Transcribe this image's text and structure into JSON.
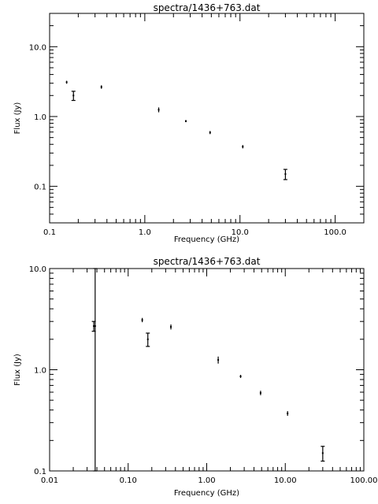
{
  "chart_data": [
    {
      "type": "scatter",
      "title": "spectra/1436+763.dat",
      "xlabel": "Frequency (GHz)",
      "ylabel": "Flux (Jy)",
      "xscale": "log",
      "yscale": "log",
      "xlim": [
        0.1,
        200
      ],
      "ylim": [
        0.03,
        30
      ],
      "grid": false,
      "xticks": [
        {
          "value": 0.1,
          "label": "0.1"
        },
        {
          "value": 1,
          "label": "1.0"
        },
        {
          "value": 10,
          "label": "10.0"
        },
        {
          "value": 100,
          "label": "100.0"
        }
      ],
      "yticks": [
        {
          "value": 0.1,
          "label": "0.1"
        },
        {
          "value": 1,
          "label": "1.0"
        },
        {
          "value": 10,
          "label": "10.0"
        }
      ],
      "points": [
        {
          "x": 0.151,
          "y": 3.1,
          "err": 0.15
        },
        {
          "x": 0.178,
          "y": 2.0,
          "err": 0.3
        },
        {
          "x": 0.35,
          "y": 2.65,
          "err": 0.15
        },
        {
          "x": 1.4,
          "y": 1.25,
          "err": 0.1
        },
        {
          "x": 2.7,
          "y": 0.86,
          "err": 0.03
        },
        {
          "x": 4.85,
          "y": 0.59,
          "err": 0.03
        },
        {
          "x": 10.7,
          "y": 0.37,
          "err": 0.02
        },
        {
          "x": 30,
          "y": 0.15,
          "err": 0.025
        }
      ]
    },
    {
      "type": "scatter",
      "title": "spectra/1436+763.dat",
      "xlabel": "Frequency (GHz)",
      "ylabel": "Flux (Jy)",
      "xscale": "log",
      "yscale": "log",
      "xlim": [
        0.01,
        100
      ],
      "ylim": [
        0.1,
        10
      ],
      "grid": false,
      "xticks": [
        {
          "value": 0.01,
          "label": "0.01"
        },
        {
          "value": 0.1,
          "label": "0.10"
        },
        {
          "value": 1,
          "label": "1.00"
        },
        {
          "value": 10,
          "label": "10.00"
        },
        {
          "value": 100,
          "label": "100.00"
        }
      ],
      "yticks": [
        {
          "value": 0.1,
          "label": "0.1"
        },
        {
          "value": 1,
          "label": "1.0"
        },
        {
          "value": 10,
          "label": "10.0"
        }
      ],
      "points": [
        {
          "x": 0.0365,
          "y": 2.7,
          "err": 0.3
        },
        {
          "x": 0.038,
          "y": 2.7,
          "err": 10
        },
        {
          "x": 0.151,
          "y": 3.1,
          "err": 0.15
        },
        {
          "x": 0.178,
          "y": 2.0,
          "err": 0.3
        },
        {
          "x": 0.35,
          "y": 2.65,
          "err": 0.15
        },
        {
          "x": 1.4,
          "y": 1.25,
          "err": 0.1
        },
        {
          "x": 2.7,
          "y": 0.86,
          "err": 0.03
        },
        {
          "x": 4.85,
          "y": 0.59,
          "err": 0.03
        },
        {
          "x": 10.7,
          "y": 0.37,
          "err": 0.02
        },
        {
          "x": 30,
          "y": 0.15,
          "err": 0.025
        }
      ]
    }
  ]
}
